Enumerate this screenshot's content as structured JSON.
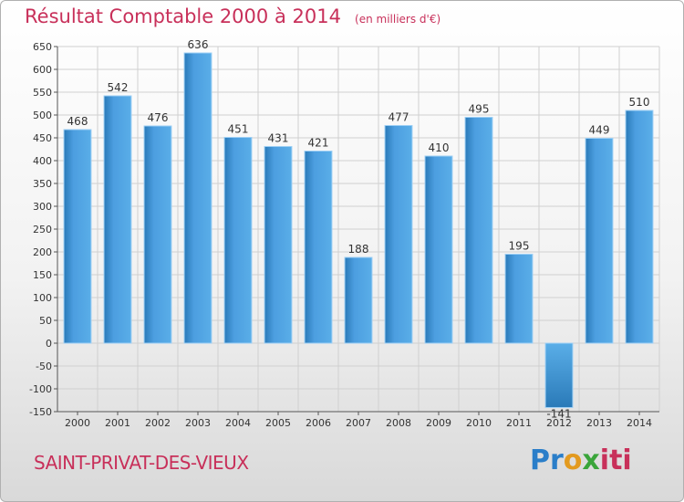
{
  "header": {
    "title": "Résultat Comptable 2000 à 2014",
    "subtitle": "(en milliers d'€)"
  },
  "footer": {
    "town": "SAINT-PRIVAT-DES-VIEUX",
    "logo_text": "Proxiti"
  },
  "colors": {
    "bar_light": "#5aaee8",
    "bar_dark": "#2a7ab8",
    "title": "#c8305a",
    "grid": "#d0d0d0"
  },
  "chart_data": {
    "type": "bar",
    "title": "Résultat Comptable 2000 à 2014",
    "subtitle": "(en milliers d'€)",
    "xlabel": "",
    "ylabel": "",
    "categories": [
      "2000",
      "2001",
      "2002",
      "2003",
      "2004",
      "2005",
      "2006",
      "2007",
      "2008",
      "2009",
      "2010",
      "2011",
      "2012",
      "2013",
      "2014"
    ],
    "values": [
      468,
      542,
      476,
      636,
      451,
      431,
      421,
      188,
      477,
      410,
      495,
      195,
      -141,
      449,
      510
    ],
    "ylim": [
      -150,
      650
    ],
    "yticks": [
      -150,
      -100,
      -50,
      0,
      50,
      100,
      150,
      200,
      250,
      300,
      350,
      400,
      450,
      500,
      550,
      600,
      650
    ],
    "grid": true,
    "legend": "none"
  }
}
